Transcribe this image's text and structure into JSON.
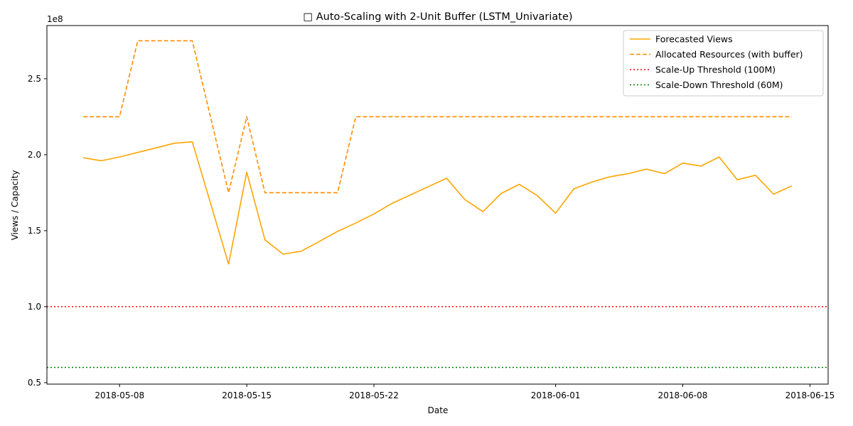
{
  "chart_data": {
    "type": "line",
    "title": "□ Auto-Scaling with 2-Unit Buffer (LSTM_Univariate)",
    "xlabel": "Date",
    "ylabel": "Views / Capacity",
    "y_offset_text": "1e8",
    "y_scale": 100000000,
    "xlim": [
      "2018-05-04",
      "2018-06-16"
    ],
    "ylim": [
      0.49,
      2.85
    ],
    "x_ticks": [
      "2018-05-08",
      "2018-05-15",
      "2018-05-22",
      "2018-06-01",
      "2018-06-08",
      "2018-06-15"
    ],
    "y_ticks": [
      "0.5",
      "1.0",
      "1.5",
      "2.0",
      "2.5"
    ],
    "grid": false,
    "legend_position": "top-right",
    "x": [
      "2018-05-06",
      "2018-05-07",
      "2018-05-08",
      "2018-05-09",
      "2018-05-10",
      "2018-05-11",
      "2018-05-12",
      "2018-05-14",
      "2018-05-15",
      "2018-05-16",
      "2018-05-17",
      "2018-05-18",
      "2018-05-19",
      "2018-05-20",
      "2018-05-21",
      "2018-05-22",
      "2018-05-23",
      "2018-05-24",
      "2018-05-25",
      "2018-05-26",
      "2018-05-27",
      "2018-05-28",
      "2018-05-29",
      "2018-05-30",
      "2018-05-31",
      "2018-06-01",
      "2018-06-02",
      "2018-06-03",
      "2018-06-04",
      "2018-06-05",
      "2018-06-06",
      "2018-06-07",
      "2018-06-08",
      "2018-06-09",
      "2018-06-10",
      "2018-06-11",
      "2018-06-12",
      "2018-06-13",
      "2018-06-14"
    ],
    "series": [
      {
        "name": "Forecasted Views",
        "color": "#FFA500",
        "style": "solid",
        "values": [
          1.98,
          1.96,
          1.985,
          2.015,
          2.045,
          2.075,
          2.085,
          1.28,
          1.885,
          1.44,
          1.345,
          1.365,
          1.43,
          1.495,
          1.55,
          1.61,
          1.68,
          1.735,
          1.79,
          1.845,
          1.705,
          1.625,
          1.745,
          1.805,
          1.73,
          1.615,
          1.775,
          1.82,
          1.855,
          1.875,
          1.905,
          1.875,
          1.945,
          1.925,
          1.985,
          1.835,
          1.865,
          1.74,
          1.795
        ]
      },
      {
        "name": "Allocated Resources (with buffer)",
        "color": "#FF8C00",
        "style": "dashed",
        "values": [
          2.25,
          2.25,
          2.25,
          2.75,
          2.75,
          2.75,
          2.75,
          1.75,
          2.25,
          1.75,
          1.75,
          1.75,
          1.75,
          1.75,
          2.25,
          2.25,
          2.25,
          2.25,
          2.25,
          2.25,
          2.25,
          2.25,
          2.25,
          2.25,
          2.25,
          2.25,
          2.25,
          2.25,
          2.25,
          2.25,
          2.25,
          2.25,
          2.25,
          2.25,
          2.25,
          2.25,
          2.25,
          2.25,
          2.25
        ]
      }
    ],
    "thresholds": [
      {
        "name": "Scale-Up Threshold (100M)",
        "value": 1.0,
        "color": "#FF0000",
        "style": "dotted"
      },
      {
        "name": "Scale-Down Threshold (60M)",
        "value": 0.6,
        "color": "#008000",
        "style": "dotted"
      }
    ]
  }
}
